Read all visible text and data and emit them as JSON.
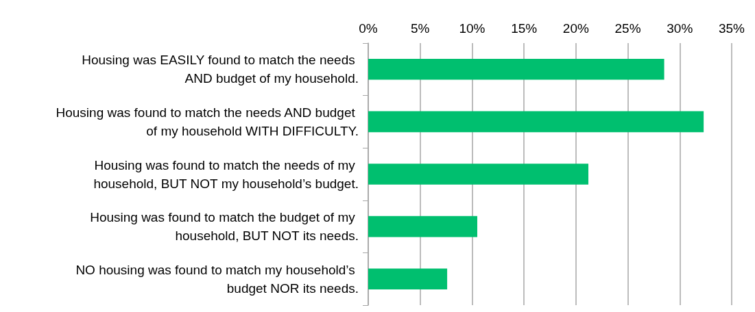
{
  "chart_data": {
    "type": "bar",
    "orientation": "horizontal",
    "categories": [
      "Housing was EASILY found to match the needs AND budget of my household.",
      "Housing was found to match the needs AND budget of my household WITH DIFFICULTY.",
      "Housing was found to match the needs of my household, BUT NOT my household’s budget.",
      "Housing was found to match the budget of my household, BUT NOT its needs.",
      "NO housing was found to match my household’s budget NOR its needs."
    ],
    "values": [
      28.5,
      32.3,
      21.2,
      10.5,
      7.6
    ],
    "color": "#00bf6f",
    "xlim": [
      0,
      35
    ],
    "xticks": [
      {
        "value": 0,
        "label": "0%"
      },
      {
        "value": 5,
        "label": "5%"
      },
      {
        "value": 10,
        "label": "10%"
      },
      {
        "value": 15,
        "label": "15%"
      },
      {
        "value": 20,
        "label": "20%"
      },
      {
        "value": 25,
        "label": "25%"
      },
      {
        "value": 30,
        "label": "30%"
      },
      {
        "value": 35,
        "label": "35%"
      }
    ],
    "grid": "x"
  }
}
